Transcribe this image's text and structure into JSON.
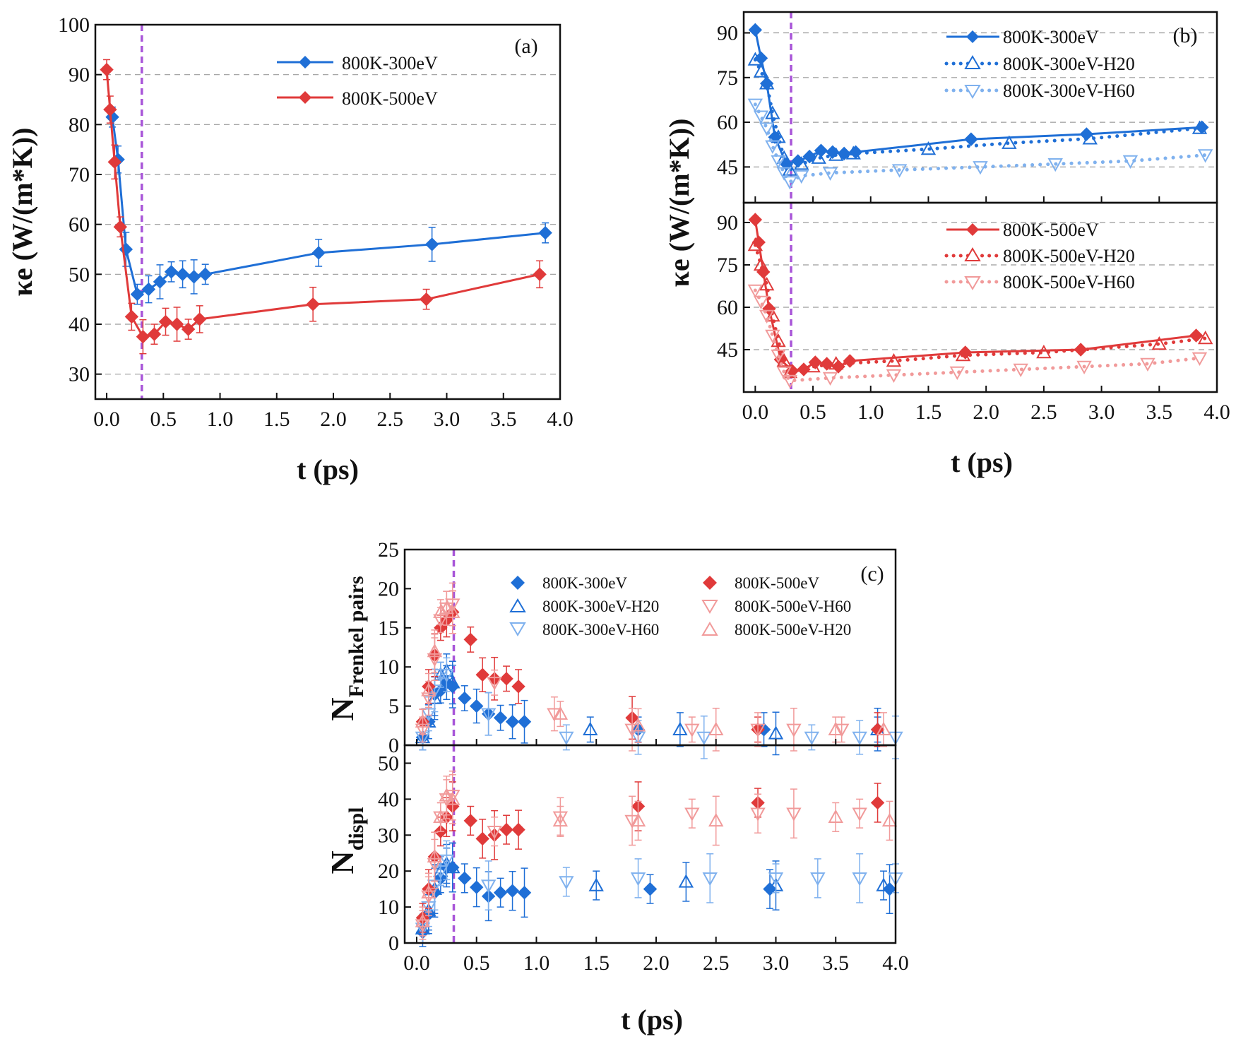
{
  "colors": {
    "blue": "#1f6fd6",
    "red": "#e03a3a",
    "light_blue": "#7fb1ee",
    "light_red": "#f19a9a",
    "vline": "#a855d8",
    "grid": "#9a9a9a",
    "axis": "#111111"
  },
  "chart_data": [
    {
      "id": "a",
      "type": "line",
      "panel_label": "(a)",
      "xlabel": "t (ps)",
      "ylabel": "κe (W/(m*K))",
      "xlim": [
        -0.1,
        4.0
      ],
      "ylim": [
        25,
        100
      ],
      "xticks": [
        "0.0",
        "0.5",
        "1.0",
        "1.5",
        "2.0",
        "2.5",
        "3.0",
        "3.5",
        "4.0"
      ],
      "yticks": [
        "30",
        "40",
        "50",
        "60",
        "70",
        "80",
        "90",
        "100"
      ],
      "grid": "horizontal-dashed",
      "vline_x": 0.31,
      "legend_position": "top-right",
      "series": [
        {
          "name": "800K-300eV",
          "color": "blue",
          "x": [
            0.05,
            0.1,
            0.17,
            0.27,
            0.37,
            0.47,
            0.57,
            0.67,
            0.77,
            0.87,
            1.87,
            2.87,
            3.87
          ],
          "y": [
            81.5,
            73,
            55,
            46,
            47,
            48.5,
            50.5,
            50,
            49.5,
            50,
            54.3,
            56,
            58.3
          ]
        },
        {
          "name": "800K-500eV",
          "color": "red",
          "x": [
            0.0,
            0.03,
            0.07,
            0.12,
            0.22,
            0.32,
            0.42,
            0.52,
            0.62,
            0.72,
            0.82,
            1.82,
            2.82,
            3.82
          ],
          "y": [
            91,
            83,
            72.5,
            59.5,
            41.5,
            37.5,
            38,
            40.5,
            40,
            39,
            41,
            44,
            45,
            50
          ]
        }
      ]
    },
    {
      "id": "b-top",
      "type": "line",
      "panel_label": "(b)",
      "xlim": [
        -0.1,
        4.0
      ],
      "ylim": [
        33,
        97
      ],
      "yticks": [
        "45",
        "60",
        "75",
        "90"
      ],
      "grid": "horizontal-dashed",
      "vline_x": 0.31,
      "legend_position": "top-right",
      "series": [
        {
          "name": "800K-300eV",
          "color": "blue",
          "marker": "diamond",
          "line": "solid",
          "x": [
            0.0,
            0.05,
            0.1,
            0.17,
            0.27,
            0.37,
            0.47,
            0.57,
            0.67,
            0.77,
            0.87,
            1.87,
            2.87,
            3.87
          ],
          "y": [
            91,
            81.5,
            73,
            55,
            46,
            47,
            48.5,
            50.5,
            50,
            49.5,
            50,
            54.3,
            56,
            58.3
          ]
        },
        {
          "name": "800K-300eV-H20",
          "color": "blue",
          "marker": "triangle-up",
          "line": "dotted",
          "x": [
            0.0,
            0.05,
            0.1,
            0.15,
            0.2,
            0.25,
            0.3,
            0.4,
            0.55,
            0.7,
            0.85,
            1.5,
            2.2,
            2.9,
            3.85
          ],
          "y": [
            81,
            77,
            73,
            63,
            55,
            48,
            44,
            46,
            48,
            49,
            49.5,
            51,
            53,
            54.5,
            58
          ]
        },
        {
          "name": "800K-300eV-H60",
          "color": "light_blue",
          "marker": "triangle-down",
          "line": "dotted",
          "x": [
            0.0,
            0.05,
            0.1,
            0.15,
            0.2,
            0.25,
            0.3,
            0.4,
            0.65,
            1.25,
            1.95,
            2.6,
            3.25,
            3.9
          ],
          "y": [
            66,
            62,
            58,
            52,
            47,
            43,
            40,
            42,
            43,
            44,
            45,
            46,
            47,
            49
          ]
        }
      ]
    },
    {
      "id": "b-bottom",
      "type": "line",
      "xlabel": "t (ps)",
      "ylabel": "κe (W/(m*K))",
      "xlim": [
        -0.1,
        4.0
      ],
      "ylim": [
        30,
        97
      ],
      "xticks": [
        "0.0",
        "0.5",
        "1.0",
        "1.5",
        "2.0",
        "2.5",
        "3.0",
        "3.5",
        "4.0"
      ],
      "yticks": [
        "45",
        "60",
        "75",
        "90"
      ],
      "grid": "horizontal-dashed",
      "vline_x": 0.31,
      "legend_position": "top-right",
      "series": [
        {
          "name": "800K-500eV",
          "color": "red",
          "marker": "diamond",
          "line": "solid",
          "x": [
            0.0,
            0.03,
            0.07,
            0.12,
            0.22,
            0.32,
            0.42,
            0.52,
            0.62,
            0.72,
            0.82,
            1.82,
            2.82,
            3.82
          ],
          "y": [
            91,
            83,
            72.5,
            59.5,
            41.5,
            37.5,
            38,
            40.5,
            40,
            39,
            41,
            44,
            45,
            50
          ]
        },
        {
          "name": "800K-500eV-H20",
          "color": "red",
          "marker": "triangle-up",
          "line": "dotted",
          "x": [
            0.0,
            0.05,
            0.1,
            0.15,
            0.2,
            0.25,
            0.3,
            0.5,
            0.7,
            1.2,
            1.8,
            2.5,
            3.5,
            3.9
          ],
          "y": [
            82,
            75,
            68,
            57,
            48,
            41,
            37,
            39,
            40,
            41,
            43,
            44,
            47,
            49
          ]
        },
        {
          "name": "800K-500eV-H60",
          "color": "light_red",
          "marker": "triangle-down",
          "line": "dotted",
          "x": [
            0.0,
            0.05,
            0.1,
            0.15,
            0.2,
            0.25,
            0.3,
            0.65,
            1.2,
            1.75,
            2.3,
            2.85,
            3.4,
            3.85
          ],
          "y": [
            66,
            62,
            57,
            50,
            43,
            37,
            34,
            35,
            36,
            37,
            38,
            39,
            40,
            42
          ]
        }
      ]
    },
    {
      "id": "c-top",
      "type": "scatter",
      "panel_label": "(c)",
      "ylabel": "NFrenkel pairs",
      "ylabel_main": "N",
      "ylabel_sub": "Frenkel pairs",
      "xlim": [
        -0.1,
        4.0
      ],
      "ylim": [
        0,
        25
      ],
      "yticks": [
        "0",
        "5",
        "10",
        "15",
        "20",
        "25"
      ],
      "vline_x": 0.31,
      "legend_position": "top",
      "series": [
        {
          "name": "800K-300eV",
          "color": "blue",
          "marker": "diamond",
          "x": [
            0.05,
            0.1,
            0.15,
            0.2,
            0.25,
            0.3,
            0.4,
            0.5,
            0.6,
            0.7,
            0.8,
            0.9,
            1.85,
            2.9,
            3.85
          ],
          "y": [
            1,
            3,
            6.5,
            7,
            8,
            7.5,
            6,
            5,
            4,
            3.5,
            3,
            3,
            2,
            2,
            2
          ]
        },
        {
          "name": "800K-300eV-H20",
          "color": "blue",
          "marker": "triangle-up",
          "x": [
            0.05,
            0.1,
            0.15,
            0.2,
            0.25,
            0.3,
            1.45,
            2.2,
            3.0,
            3.85
          ],
          "y": [
            1,
            3,
            6,
            9,
            9.5,
            8,
            2,
            2,
            1.5,
            2
          ]
        },
        {
          "name": "800K-300eV-H60",
          "color": "light_blue",
          "marker": "triangle-down",
          "x": [
            0.05,
            0.1,
            0.15,
            0.2,
            0.25,
            0.6,
            1.25,
            1.85,
            2.4,
            3.3,
            3.7,
            4.0
          ],
          "y": [
            1,
            4,
            7,
            9,
            9,
            4,
            1,
            1,
            1,
            1,
            1,
            1
          ]
        },
        {
          "name": "800K-500eV",
          "color": "red",
          "marker": "diamond",
          "x": [
            0.05,
            0.1,
            0.15,
            0.2,
            0.25,
            0.3,
            0.45,
            0.55,
            0.65,
            0.75,
            0.85,
            1.8,
            2.85,
            3.85
          ],
          "y": [
            3,
            7.5,
            11.5,
            15,
            16,
            17,
            13.5,
            9,
            8.5,
            8.5,
            7.5,
            3.5,
            2,
            2
          ]
        },
        {
          "name": "800K-500eV-H60",
          "color": "light_red",
          "marker": "triangle-down",
          "x": [
            0.05,
            0.1,
            0.15,
            0.2,
            0.25,
            0.3,
            0.65,
            1.15,
            1.8,
            2.3,
            2.85,
            3.15,
            3.55
          ],
          "y": [
            2,
            6,
            11,
            16,
            17.5,
            18,
            8,
            4,
            2,
            2,
            2,
            2,
            2
          ]
        },
        {
          "name": "800K-500eV-H20",
          "color": "light_red",
          "marker": "triangle-up",
          "x": [
            0.05,
            0.1,
            0.15,
            0.2,
            0.25,
            0.3,
            1.2,
            1.85,
            2.5,
            3.5,
            3.9
          ],
          "y": [
            3,
            7,
            12,
            17,
            17.5,
            17,
            4,
            2.5,
            2,
            2,
            2
          ]
        }
      ]
    },
    {
      "id": "c-bottom",
      "type": "scatter",
      "xlabel": "t (ps)",
      "ylabel": "Ndispl",
      "ylabel_main": "N",
      "ylabel_sub": "displ",
      "xlim": [
        -0.1,
        4.0
      ],
      "ylim": [
        0,
        55
      ],
      "xticks": [
        "0.0",
        "0.5",
        "1.0",
        "1.5",
        "2.0",
        "2.5",
        "3.0",
        "3.5",
        "4.0"
      ],
      "yticks": [
        "0",
        "10",
        "20",
        "30",
        "40",
        "50"
      ],
      "vline_x": 0.31,
      "series": [
        {
          "name": "800K-300eV",
          "color": "blue",
          "marker": "diamond",
          "x": [
            0.05,
            0.1,
            0.15,
            0.2,
            0.25,
            0.3,
            0.4,
            0.5,
            0.6,
            0.7,
            0.8,
            0.9,
            1.95,
            2.95,
            3.95
          ],
          "y": [
            3,
            8,
            14,
            18,
            21,
            21,
            18,
            15.5,
            13,
            14,
            14.5,
            14,
            15,
            15,
            15
          ]
        },
        {
          "name": "800K-300eV-H20",
          "color": "blue",
          "marker": "triangle-up",
          "x": [
            0.05,
            0.1,
            0.15,
            0.2,
            0.25,
            0.3,
            1.5,
            2.25,
            3.0,
            3.9
          ],
          "y": [
            4,
            9,
            15,
            20,
            22,
            21,
            16,
            17,
            16,
            16
          ]
        },
        {
          "name": "800K-300eV-H60",
          "color": "light_blue",
          "marker": "triangle-down",
          "x": [
            0.05,
            0.1,
            0.15,
            0.2,
            0.25,
            0.6,
            1.25,
            1.85,
            2.45,
            3.0,
            3.35,
            3.7,
            4.0
          ],
          "y": [
            4,
            10,
            16,
            20,
            23,
            16,
            17,
            18,
            18,
            18,
            18,
            18,
            18
          ]
        },
        {
          "name": "800K-500eV",
          "color": "red",
          "marker": "diamond",
          "x": [
            0.05,
            0.1,
            0.15,
            0.2,
            0.25,
            0.3,
            0.45,
            0.55,
            0.65,
            0.75,
            0.85,
            1.85,
            2.85,
            3.85
          ],
          "y": [
            7,
            15,
            24,
            31,
            35,
            38,
            34,
            29,
            30,
            31.5,
            31.5,
            38,
            39,
            39
          ]
        },
        {
          "name": "800K-500eV-H60",
          "color": "light_red",
          "marker": "triangle-down",
          "x": [
            0.05,
            0.1,
            0.15,
            0.2,
            0.25,
            0.3,
            0.65,
            1.2,
            1.8,
            2.3,
            2.85,
            3.15,
            3.7
          ],
          "y": [
            5,
            13,
            22,
            35,
            40,
            41,
            31,
            35,
            34,
            36,
            36,
            36,
            36
          ]
        },
        {
          "name": "800K-500eV-H20",
          "color": "light_red",
          "marker": "triangle-up",
          "x": [
            0.05,
            0.1,
            0.15,
            0.2,
            0.25,
            0.3,
            1.2,
            1.85,
            2.5,
            3.5,
            3.95
          ],
          "y": [
            6,
            14,
            24,
            35,
            41,
            40,
            34,
            34,
            34,
            35,
            34
          ]
        }
      ]
    }
  ]
}
